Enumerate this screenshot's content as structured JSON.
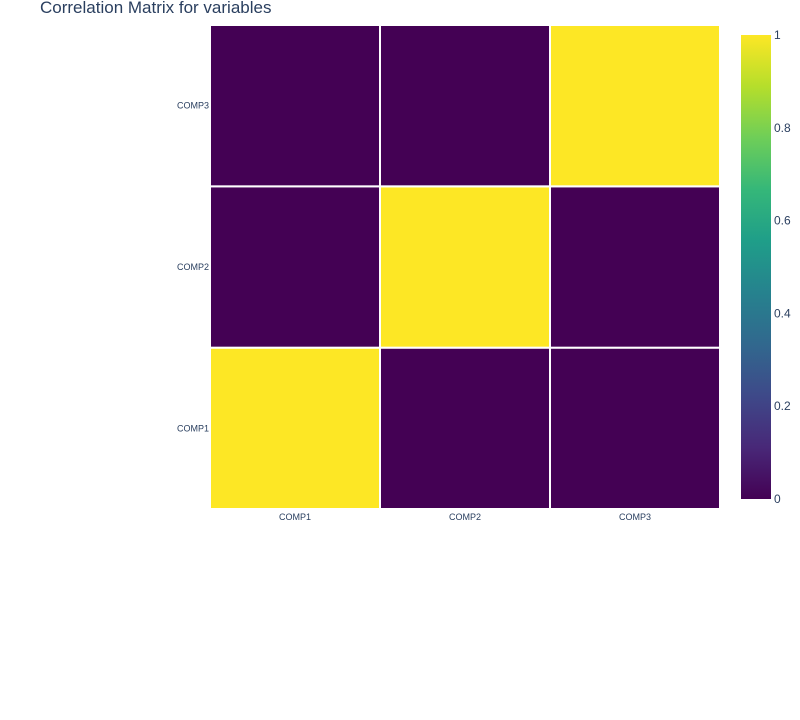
{
  "chart_data": {
    "type": "heatmap",
    "title": "Correlation Matrix for variables",
    "x_categories": [
      "COMP1",
      "COMP2",
      "COMP3"
    ],
    "y_categories": [
      "COMP1",
      "COMP2",
      "COMP3"
    ],
    "z": [
      [
        1,
        0,
        0
      ],
      [
        0,
        1,
        0
      ],
      [
        0,
        0,
        1
      ]
    ],
    "zmin": 0,
    "zmax": 1,
    "colorscale": "Viridis",
    "colorscale_stops": [
      "#440154",
      "#482878",
      "#3e4989",
      "#31688e",
      "#26828e",
      "#1f9e89",
      "#35b779",
      "#6ece58",
      "#b5de2b",
      "#fde725"
    ],
    "colorbar_ticks": [
      "0",
      "0.2",
      "0.4",
      "0.6",
      "0.8",
      "1"
    ],
    "colorbar_tick_values": [
      0,
      0.2,
      0.4,
      0.6,
      0.8,
      1
    ],
    "grid": false,
    "legend": "colorbar-right"
  }
}
